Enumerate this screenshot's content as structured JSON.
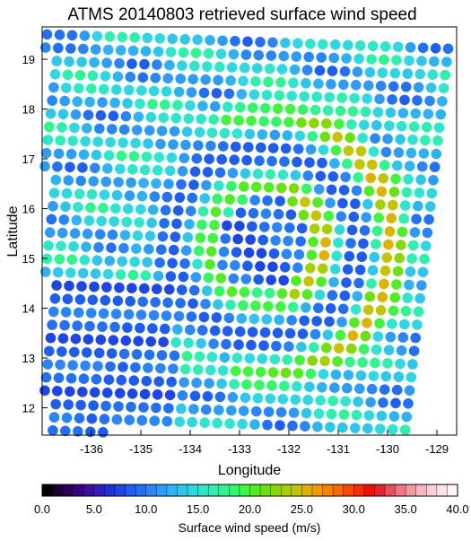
{
  "chart_data": {
    "type": "scatter",
    "title": "ATMS 20140803 retrieved surface wind speed",
    "xlabel": "Longitude",
    "ylabel": "Latitude",
    "xlim": [
      -137,
      -128.6
    ],
    "ylim": [
      11.45,
      19.65
    ],
    "x_ticks": [
      -136,
      -135,
      -134,
      -133,
      -132,
      -131,
      -130,
      -129
    ],
    "y_ticks": [
      12,
      13,
      14,
      15,
      16,
      17,
      18,
      19
    ],
    "colorbar": {
      "label": "Surface wind speed (m/s)",
      "range": [
        0,
        40
      ],
      "tick_values": [
        0,
        5,
        10,
        15,
        20,
        25,
        30,
        35,
        40
      ],
      "tick_labels": [
        "0.0",
        "5.0",
        "10.0",
        "15.0",
        "20.0",
        "25.0",
        "30.0",
        "35.0",
        "40.0"
      ],
      "colors": [
        "#000000",
        "#1a0030",
        "#2e005a",
        "#3b0080",
        "#3a10a0",
        "#3020bf",
        "#2330d6",
        "#1e45e6",
        "#1f5cf0",
        "#2470f5",
        "#2a86f7",
        "#2e9cf7",
        "#2fb2f3",
        "#30c6ec",
        "#2fd8e0",
        "#2ee6cc",
        "#2df0b0",
        "#2ef58e",
        "#33f766",
        "#3ef540",
        "#52ec22",
        "#6ce010",
        "#88d808",
        "#a6d005",
        "#c4c400",
        "#deb300",
        "#f09c00",
        "#f88200",
        "#fc6600",
        "#fd4a00",
        "#fc2a00",
        "#f01008",
        "#e3242f",
        "#eb4e5e",
        "#f17485",
        "#f596a3",
        "#f9b6bf",
        "#fcd0d6",
        "#fee4e8",
        "#fff4f6"
      ]
    },
    "scan_geometry": {
      "rows": 31,
      "cols": 33,
      "origin_lon_lat": [
        -136.9,
        19.5
      ],
      "cross_track_step_deg": [
        0.254,
        -0.009
      ],
      "along_track_step_deg": [
        -0.03,
        -0.264
      ]
    },
    "storm": {
      "center_lon_lat": [
        -132.5,
        15.3
      ],
      "eye_radius_deg": 1.2,
      "eye_speed": 9,
      "eyewall_speed_west": 21,
      "eyewall_speed_east": 30,
      "outer_rainband_radius_deg": 2.6,
      "outer_rainband_speed": 20,
      "outer_blue_arc_speed": 8,
      "background_speed": 13
    }
  }
}
